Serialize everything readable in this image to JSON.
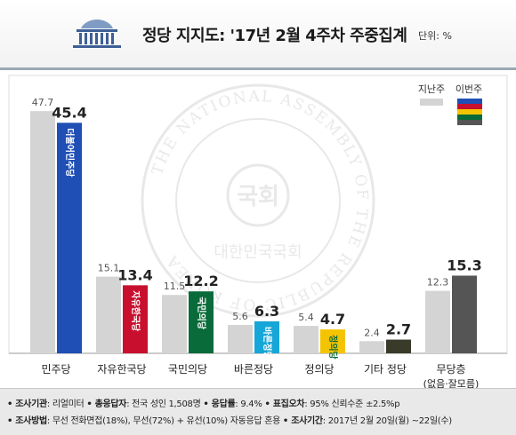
{
  "header": {
    "title": "정당 지지도: '17년 2월 4주차 주중집계",
    "unit": "단위: %"
  },
  "watermark": {
    "ring_text": "THE NATIONAL ASSEMBLY OF THE REPUBLIC OF KOREA",
    "inner_text": "대한민국국회",
    "seal_text": "국회"
  },
  "chart_data": {
    "type": "bar",
    "categories": [
      "민주당",
      "자유한국당",
      "국민의당",
      "바른정당",
      "정의당",
      "기타 정당",
      "무당층"
    ],
    "category_sublabels": [
      "",
      "",
      "",
      "",
      "",
      "",
      "(없음·잘모름)"
    ],
    "ylim": [
      0,
      50
    ],
    "grid": false,
    "legend_position": "top-right",
    "series": [
      {
        "name": "지난주",
        "color": "#d4d4d4",
        "values": [
          47.7,
          15.1,
          11.5,
          5.6,
          5.4,
          2.4,
          12.3
        ]
      },
      {
        "name": "이번주",
        "colors": [
          "#1f4fb4",
          "#c8102e",
          "#0a6b3a",
          "#17a6d8",
          "#f5c400",
          "#3a3a2a",
          "#555555"
        ],
        "values": [
          45.4,
          13.4,
          12.2,
          6.3,
          4.7,
          2.7,
          15.3
        ]
      }
    ],
    "legend_swatch_colors": [
      "#1f4fb4",
      "#c8102e",
      "#f5c400",
      "#0a6b3a",
      "#555555"
    ],
    "party_logos": [
      "더불어민주당",
      "자유한국당",
      "국민의당",
      "바른정당",
      "정의당",
      "",
      ""
    ]
  },
  "footer": {
    "line1": [
      {
        "label": "• 조사기관",
        "value": ": 리얼미터 "
      },
      {
        "label": "• 총응답자",
        "value": ": 전국 성인 1,508명 "
      },
      {
        "label": "• 응답률",
        "value": ": 9.4% "
      },
      {
        "label": "• 표집오차",
        "value": ": 95% 신뢰수준 ±2.5%p"
      }
    ],
    "line2": [
      {
        "label": "• 조사방법",
        "value": ": 무선 전화면접(18%), 무선(72%) + 유선(10%) 자동응답 혼용 "
      },
      {
        "label": "• 조사기간",
        "value": ": 2017년 2월 20일(월) ~22일(수)"
      }
    ]
  }
}
